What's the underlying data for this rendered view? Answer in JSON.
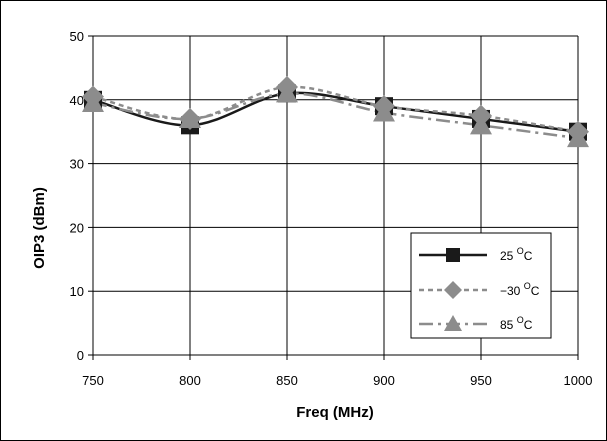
{
  "chart_data": {
    "type": "line",
    "title": "",
    "xlabel": "Freq (MHz)",
    "ylabel": "OIP3 (dBm)",
    "x": [
      750,
      800,
      850,
      900,
      950,
      1000
    ],
    "xlim": [
      750,
      1000
    ],
    "ylim": [
      0,
      50
    ],
    "xticks": [
      "750",
      "800",
      "850",
      "900",
      "950",
      "1000"
    ],
    "yticks": [
      "0",
      "10",
      "20",
      "30",
      "40",
      "50"
    ],
    "grid": true,
    "legend_position": "bottom-right",
    "series": [
      {
        "name": "25 °C",
        "unit_super": "O",
        "label_prefix": "25 ",
        "label_suffix": "C",
        "values": [
          40,
          36,
          41,
          39,
          37,
          35
        ],
        "color": "#1a1a1a",
        "marker": "square",
        "line_style": "solid"
      },
      {
        "name": "−30 °C",
        "unit_super": "O",
        "label_prefix": "−30 ",
        "label_suffix": "C",
        "values": [
          40.5,
          37,
          42,
          39,
          37.5,
          35
        ],
        "color": "#8c8c8c",
        "marker": "diamond",
        "line_style": "dotted"
      },
      {
        "name": "85 °C",
        "unit_super": "O",
        "label_prefix": "85 ",
        "label_suffix": "C",
        "values": [
          39.5,
          37,
          41,
          38,
          36,
          34
        ],
        "color": "#8c8c8c",
        "marker": "triangle",
        "line_style": "dashdot"
      }
    ]
  }
}
